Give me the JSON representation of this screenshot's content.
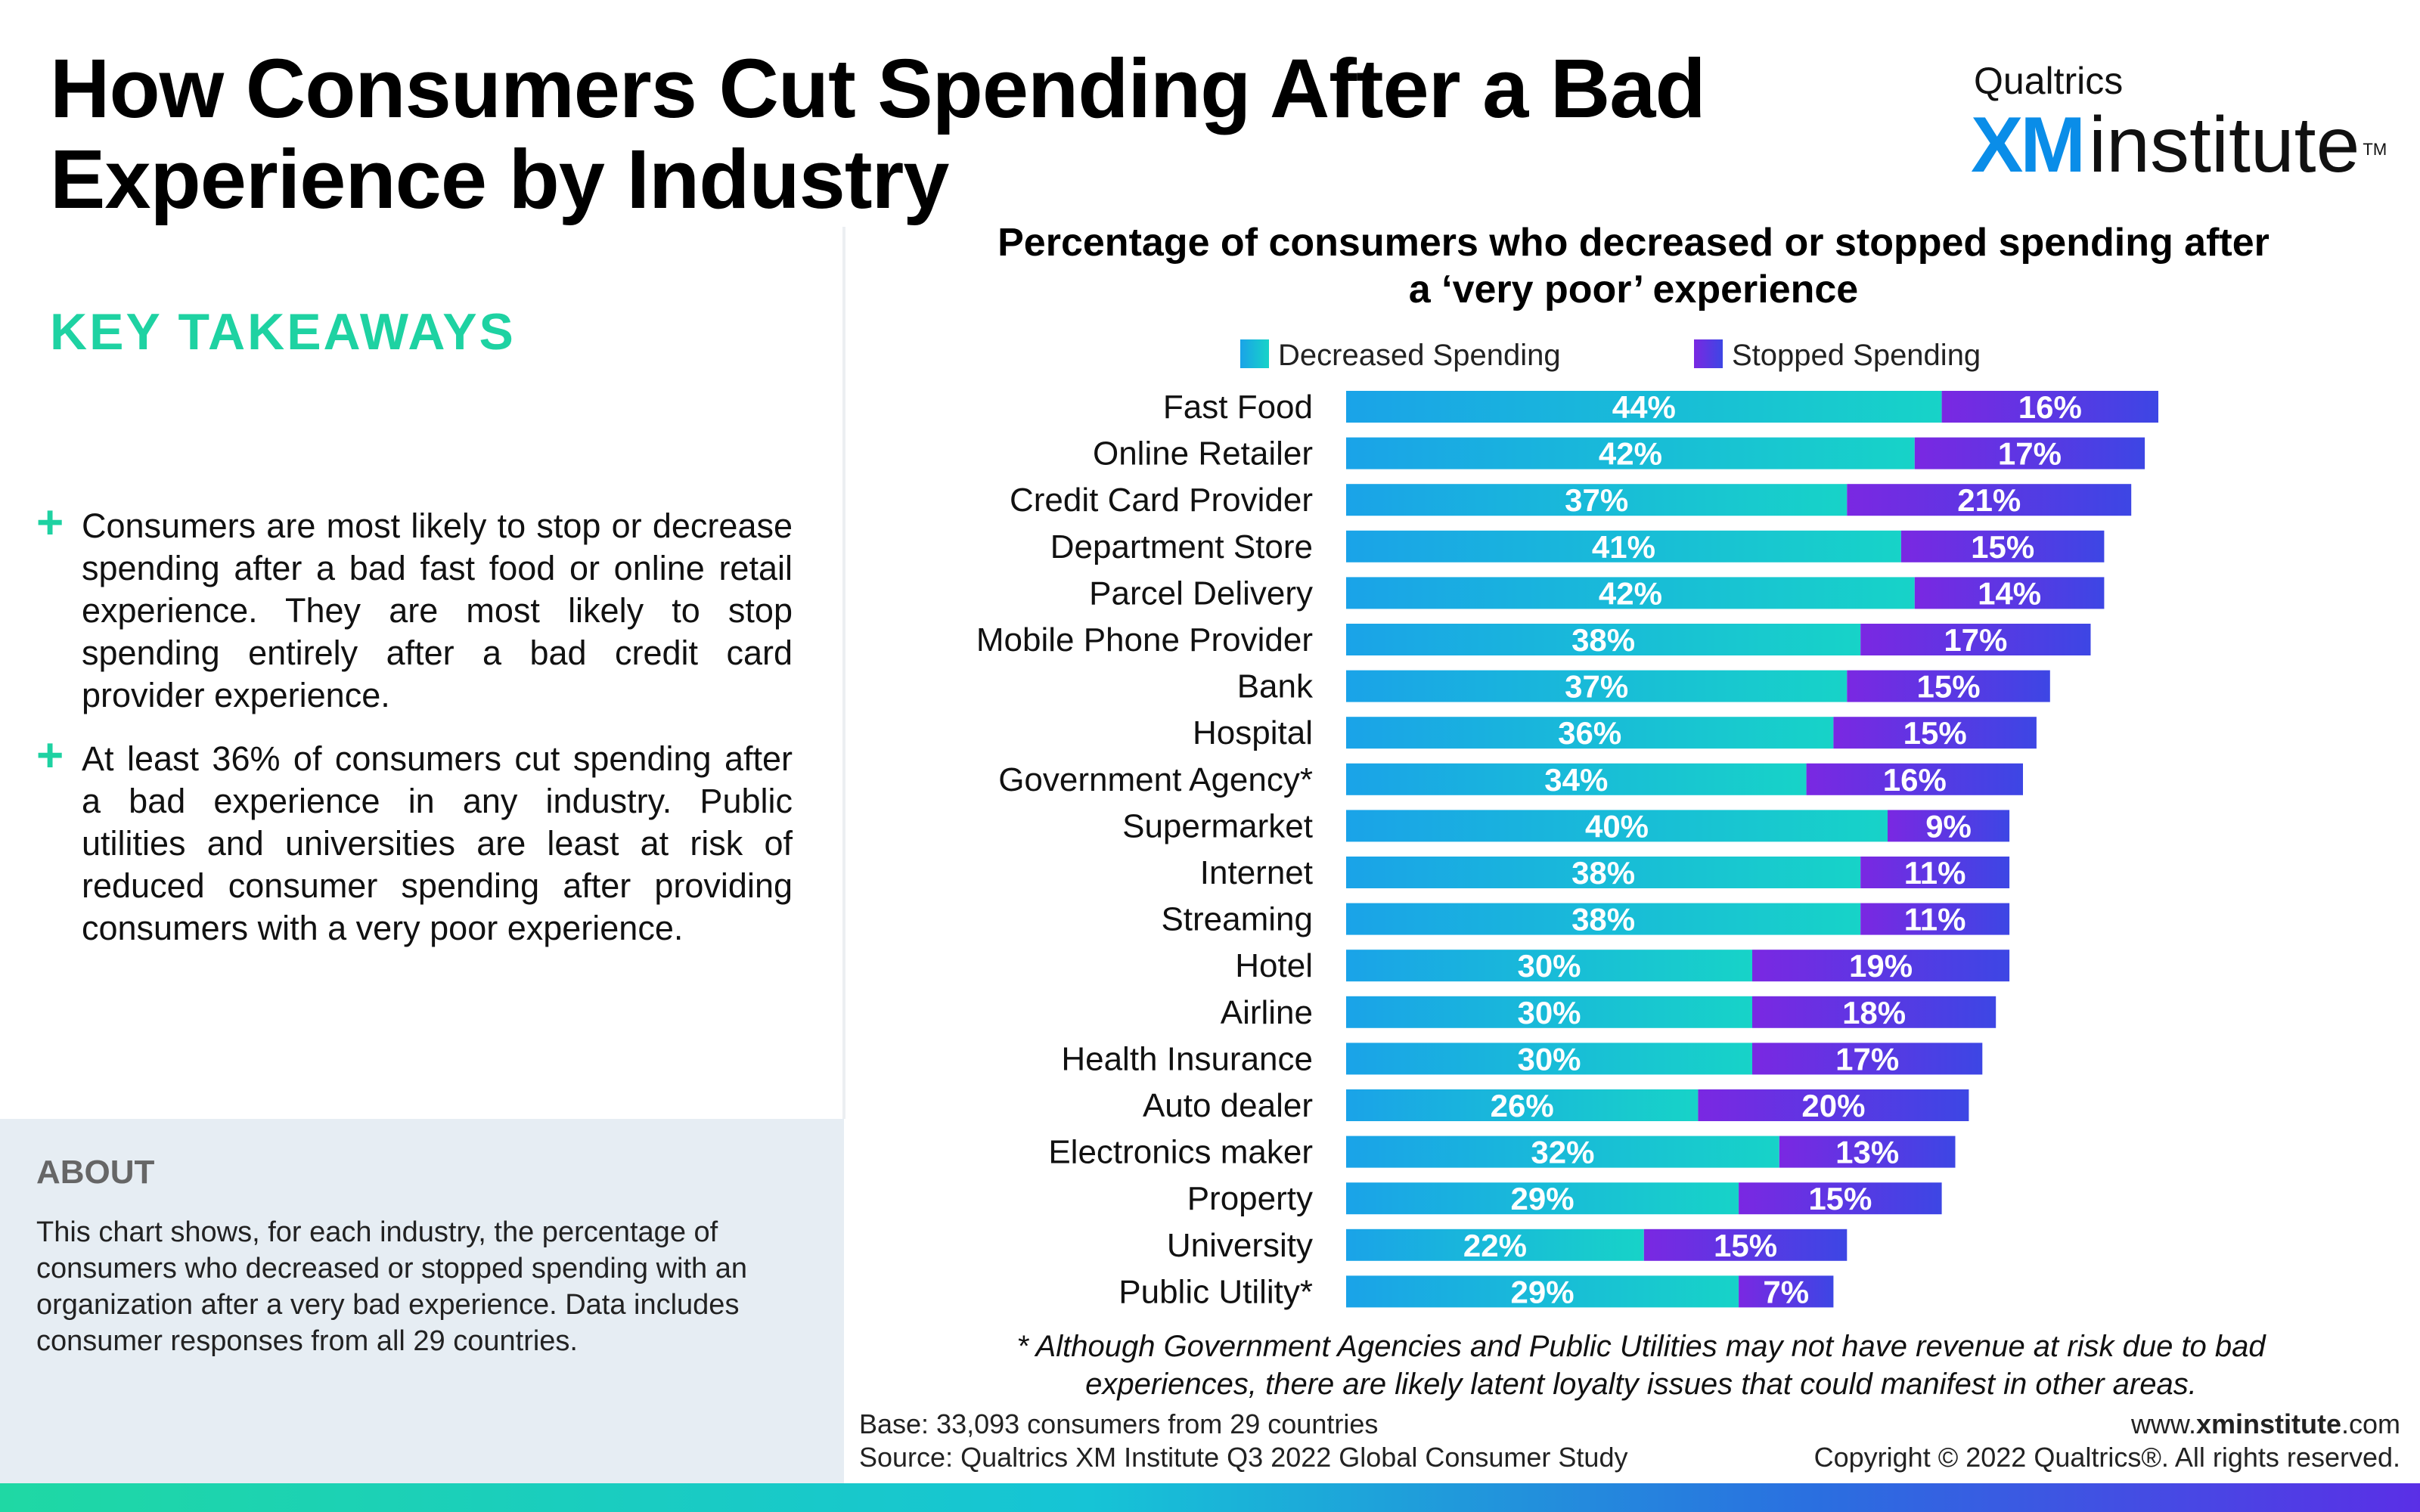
{
  "header": {
    "title": "How Consumers Cut Spending After a Bad Experience by Industry",
    "logo_top": "Qualtrics",
    "logo_xm": "XM",
    "logo_word": "institute",
    "logo_tm": "TM"
  },
  "takeaways": {
    "title": "KEY TAKEAWAYS",
    "plus": "+",
    "items": [
      "Consumers are most likely to stop or decrease spending after a bad fast food or online retail experience. They are most likely to stop spending entirely after a bad credit card provider experience.",
      "At least 36% of consumers cut spending after a bad experience in any industry. Public utilities and universities are least at risk of reduced consumer spending after providing consumers with a very poor experience."
    ]
  },
  "about": {
    "title": "ABOUT",
    "text": "This chart shows, for each industry, the percentage of consumers who decreased or stopped spending with an organization after a very bad experience. Data includes consumer responses from all 29 countries."
  },
  "chart_data": {
    "type": "bar",
    "orientation": "horizontal",
    "stacked": true,
    "title": "Percentage of consumers who decreased or stopped spending after a ‘very poor’ experience",
    "legend_position": "top",
    "categories": [
      "Fast Food",
      "Online Retailer",
      "Credit Card Provider",
      "Department Store",
      "Parcel Delivery",
      "Mobile Phone Provider",
      "Bank",
      "Hospital",
      "Government Agency*",
      "Supermarket",
      "Internet",
      "Streaming",
      "Hotel",
      "Airline",
      "Health Insurance",
      "Auto dealer",
      "Electronics maker",
      "Property",
      "University",
      "Public Utility*"
    ],
    "series": [
      {
        "name": "Decreased Spending",
        "values": [
          44,
          42,
          37,
          41,
          42,
          38,
          37,
          36,
          34,
          40,
          38,
          38,
          30,
          30,
          30,
          26,
          32,
          29,
          22,
          29
        ],
        "color": "#12c4d4"
      },
      {
        "name": "Stopped Spending",
        "values": [
          16,
          17,
          21,
          15,
          14,
          17,
          15,
          15,
          16,
          9,
          11,
          11,
          19,
          18,
          17,
          20,
          13,
          15,
          15,
          7
        ],
        "color": "#5a2fe6"
      }
    ],
    "value_suffix": "%",
    "grid": false
  },
  "footnote": "* Although Government Agencies and Public Utilities may not have revenue at risk due to bad experiences, there are likely latent loyalty issues that could manifest in other areas.",
  "footer": {
    "base": "Base: 33,093 consumers from 29 countries",
    "source": "Source: Qualtrics XM Institute Q3 2022 Global Consumer Study",
    "website_prefix": "www.",
    "website_bold": "xminstitute",
    "website_suffix": ".com",
    "copyright": "Copyright © 2022 Qualtrics®. All rights reserved."
  }
}
